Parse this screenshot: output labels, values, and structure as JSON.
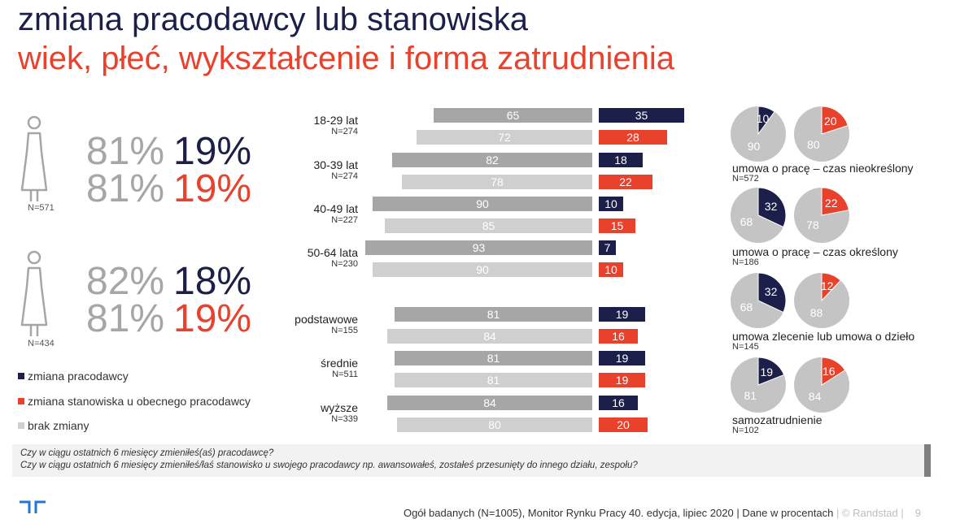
{
  "title": "zmiana pracodawcy lub stanowiska",
  "subtitle": "wiek, płeć, wykształcenie i forma zatrudnienia",
  "gender": [
    {
      "icon": "female-person-icon",
      "n": "N=571",
      "row1": {
        "brak": "81%",
        "zmiana": "19%"
      },
      "row2": {
        "brak": "81%",
        "zmiana": "19%"
      }
    },
    {
      "icon": "female-person-icon",
      "n": "N=434",
      "row1": {
        "brak": "82%",
        "zmiana": "18%"
      },
      "row2": {
        "brak": "81%",
        "zmiana": "19%"
      }
    }
  ],
  "legend": [
    {
      "label": "zmiana pracodawcy",
      "color": "#1c1f49"
    },
    {
      "label": "zmiana stanowiska u obecnego pracodawcy",
      "color": "#e8412c"
    },
    {
      "label": "brak zmiany",
      "color": "#cfcfcf"
    }
  ],
  "chart_data": [
    {
      "type": "bar",
      "categories": [
        "18-29 lat",
        "30-39 lat",
        "40-49 lat",
        "50-64 lata",
        "podstawowe",
        "średnie",
        "wyższe"
      ],
      "category_n": [
        "N=274",
        "N=274",
        "N=227",
        "N=230",
        "N=155",
        "N=511",
        "N=339"
      ],
      "series": [
        {
          "name": "brak zmiany",
          "values": [
            65,
            82,
            90,
            93,
            81,
            81,
            84
          ],
          "color": "#a6a6a6"
        },
        {
          "name": "zmiana pracodawcy",
          "values": [
            35,
            18,
            10,
            7,
            19,
            19,
            16
          ],
          "color": "#1c1f49"
        },
        {
          "name": "brak zmiany",
          "values": [
            72,
            78,
            85,
            90,
            84,
            81,
            80
          ],
          "color": "#cfcfcf"
        },
        {
          "name": "zmiana stanowiska u obecnego pracodawcy",
          "values": [
            28,
            22,
            15,
            10,
            16,
            19,
            20
          ],
          "color": "#e8412c"
        }
      ]
    },
    {
      "type": "pie",
      "categories": [
        "umowa o pracę – czas nieokreślony",
        "umowa o pracę – czas określony",
        "umowa zlecenie lub umowa o dzieło",
        "samozatrudnienie"
      ],
      "category_n": [
        "N=572",
        "N=186",
        "N=145",
        "N=102"
      ],
      "series": [
        {
          "name": "zmiana pracodawcy",
          "values": [
            10,
            32,
            32,
            19
          ],
          "rest": [
            90,
            68,
            68,
            81
          ],
          "color": "#1c1f49"
        },
        {
          "name": "zmiana stanowiska u obecnego pracodawcy",
          "values": [
            20,
            22,
            12,
            16
          ],
          "rest": [
            80,
            78,
            88,
            84
          ],
          "color": "#e8412c"
        }
      ]
    }
  ],
  "questions": {
    "q1": "Czy w ciągu ostatnich 6 miesięcy zmieniłeś(aś) pracodawcę?",
    "q2": "Czy w ciągu ostatnich 6 miesięcy zmieniłeś/łaś stanowisko u swojego pracodawcy np. awansowałeś, zostałeś przesunięty do innego działu, zespołu?"
  },
  "footer": {
    "main": "Ogół badanych (N=1005), Monitor Rynku Pracy 40. edycja, lipiec 2020 | Dane w procentach",
    "brand": " | © Randstad  |",
    "page": "9"
  },
  "logo_icon": "randstad-logo-icon"
}
